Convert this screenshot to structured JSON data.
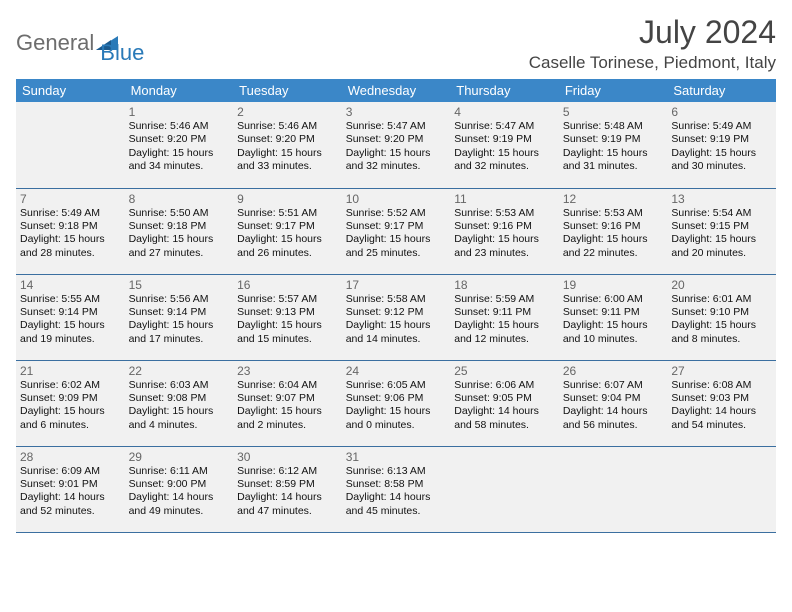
{
  "brand": {
    "word1": "General",
    "word2": "Blue"
  },
  "title": "July 2024",
  "location": "Caselle Torinese, Piedmont, Italy",
  "colors": {
    "header_bg": "#3b87c8",
    "header_text": "#ffffff",
    "row_border": "#3b6fa0",
    "shaded_bg": "#f1f1f1",
    "brand_gray": "#6d6d6d",
    "brand_blue": "#2a7ab8"
  },
  "day_headers": [
    "Sunday",
    "Monday",
    "Tuesday",
    "Wednesday",
    "Thursday",
    "Friday",
    "Saturday"
  ],
  "weeks": [
    [
      {
        "n": "",
        "lines": []
      },
      {
        "n": "1",
        "lines": [
          "Sunrise: 5:46 AM",
          "Sunset: 9:20 PM",
          "Daylight: 15 hours",
          "and 34 minutes."
        ]
      },
      {
        "n": "2",
        "lines": [
          "Sunrise: 5:46 AM",
          "Sunset: 9:20 PM",
          "Daylight: 15 hours",
          "and 33 minutes."
        ]
      },
      {
        "n": "3",
        "lines": [
          "Sunrise: 5:47 AM",
          "Sunset: 9:20 PM",
          "Daylight: 15 hours",
          "and 32 minutes."
        ]
      },
      {
        "n": "4",
        "lines": [
          "Sunrise: 5:47 AM",
          "Sunset: 9:19 PM",
          "Daylight: 15 hours",
          "and 32 minutes."
        ]
      },
      {
        "n": "5",
        "lines": [
          "Sunrise: 5:48 AM",
          "Sunset: 9:19 PM",
          "Daylight: 15 hours",
          "and 31 minutes."
        ]
      },
      {
        "n": "6",
        "lines": [
          "Sunrise: 5:49 AM",
          "Sunset: 9:19 PM",
          "Daylight: 15 hours",
          "and 30 minutes."
        ]
      }
    ],
    [
      {
        "n": "7",
        "lines": [
          "Sunrise: 5:49 AM",
          "Sunset: 9:18 PM",
          "Daylight: 15 hours",
          "and 28 minutes."
        ]
      },
      {
        "n": "8",
        "lines": [
          "Sunrise: 5:50 AM",
          "Sunset: 9:18 PM",
          "Daylight: 15 hours",
          "and 27 minutes."
        ]
      },
      {
        "n": "9",
        "lines": [
          "Sunrise: 5:51 AM",
          "Sunset: 9:17 PM",
          "Daylight: 15 hours",
          "and 26 minutes."
        ]
      },
      {
        "n": "10",
        "lines": [
          "Sunrise: 5:52 AM",
          "Sunset: 9:17 PM",
          "Daylight: 15 hours",
          "and 25 minutes."
        ]
      },
      {
        "n": "11",
        "lines": [
          "Sunrise: 5:53 AM",
          "Sunset: 9:16 PM",
          "Daylight: 15 hours",
          "and 23 minutes."
        ]
      },
      {
        "n": "12",
        "lines": [
          "Sunrise: 5:53 AM",
          "Sunset: 9:16 PM",
          "Daylight: 15 hours",
          "and 22 minutes."
        ]
      },
      {
        "n": "13",
        "lines": [
          "Sunrise: 5:54 AM",
          "Sunset: 9:15 PM",
          "Daylight: 15 hours",
          "and 20 minutes."
        ]
      }
    ],
    [
      {
        "n": "14",
        "lines": [
          "Sunrise: 5:55 AM",
          "Sunset: 9:14 PM",
          "Daylight: 15 hours",
          "and 19 minutes."
        ]
      },
      {
        "n": "15",
        "lines": [
          "Sunrise: 5:56 AM",
          "Sunset: 9:14 PM",
          "Daylight: 15 hours",
          "and 17 minutes."
        ]
      },
      {
        "n": "16",
        "lines": [
          "Sunrise: 5:57 AM",
          "Sunset: 9:13 PM",
          "Daylight: 15 hours",
          "and 15 minutes."
        ]
      },
      {
        "n": "17",
        "lines": [
          "Sunrise: 5:58 AM",
          "Sunset: 9:12 PM",
          "Daylight: 15 hours",
          "and 14 minutes."
        ]
      },
      {
        "n": "18",
        "lines": [
          "Sunrise: 5:59 AM",
          "Sunset: 9:11 PM",
          "Daylight: 15 hours",
          "and 12 minutes."
        ]
      },
      {
        "n": "19",
        "lines": [
          "Sunrise: 6:00 AM",
          "Sunset: 9:11 PM",
          "Daylight: 15 hours",
          "and 10 minutes."
        ]
      },
      {
        "n": "20",
        "lines": [
          "Sunrise: 6:01 AM",
          "Sunset: 9:10 PM",
          "Daylight: 15 hours",
          "and 8 minutes."
        ]
      }
    ],
    [
      {
        "n": "21",
        "lines": [
          "Sunrise: 6:02 AM",
          "Sunset: 9:09 PM",
          "Daylight: 15 hours",
          "and 6 minutes."
        ]
      },
      {
        "n": "22",
        "lines": [
          "Sunrise: 6:03 AM",
          "Sunset: 9:08 PM",
          "Daylight: 15 hours",
          "and 4 minutes."
        ]
      },
      {
        "n": "23",
        "lines": [
          "Sunrise: 6:04 AM",
          "Sunset: 9:07 PM",
          "Daylight: 15 hours",
          "and 2 minutes."
        ]
      },
      {
        "n": "24",
        "lines": [
          "Sunrise: 6:05 AM",
          "Sunset: 9:06 PM",
          "Daylight: 15 hours",
          "and 0 minutes."
        ]
      },
      {
        "n": "25",
        "lines": [
          "Sunrise: 6:06 AM",
          "Sunset: 9:05 PM",
          "Daylight: 14 hours",
          "and 58 minutes."
        ]
      },
      {
        "n": "26",
        "lines": [
          "Sunrise: 6:07 AM",
          "Sunset: 9:04 PM",
          "Daylight: 14 hours",
          "and 56 minutes."
        ]
      },
      {
        "n": "27",
        "lines": [
          "Sunrise: 6:08 AM",
          "Sunset: 9:03 PM",
          "Daylight: 14 hours",
          "and 54 minutes."
        ]
      }
    ],
    [
      {
        "n": "28",
        "lines": [
          "Sunrise: 6:09 AM",
          "Sunset: 9:01 PM",
          "Daylight: 14 hours",
          "and 52 minutes."
        ]
      },
      {
        "n": "29",
        "lines": [
          "Sunrise: 6:11 AM",
          "Sunset: 9:00 PM",
          "Daylight: 14 hours",
          "and 49 minutes."
        ]
      },
      {
        "n": "30",
        "lines": [
          "Sunrise: 6:12 AM",
          "Sunset: 8:59 PM",
          "Daylight: 14 hours",
          "and 47 minutes."
        ]
      },
      {
        "n": "31",
        "lines": [
          "Sunrise: 6:13 AM",
          "Sunset: 8:58 PM",
          "Daylight: 14 hours",
          "and 45 minutes."
        ]
      },
      {
        "n": "",
        "lines": []
      },
      {
        "n": "",
        "lines": []
      },
      {
        "n": "",
        "lines": []
      }
    ]
  ]
}
